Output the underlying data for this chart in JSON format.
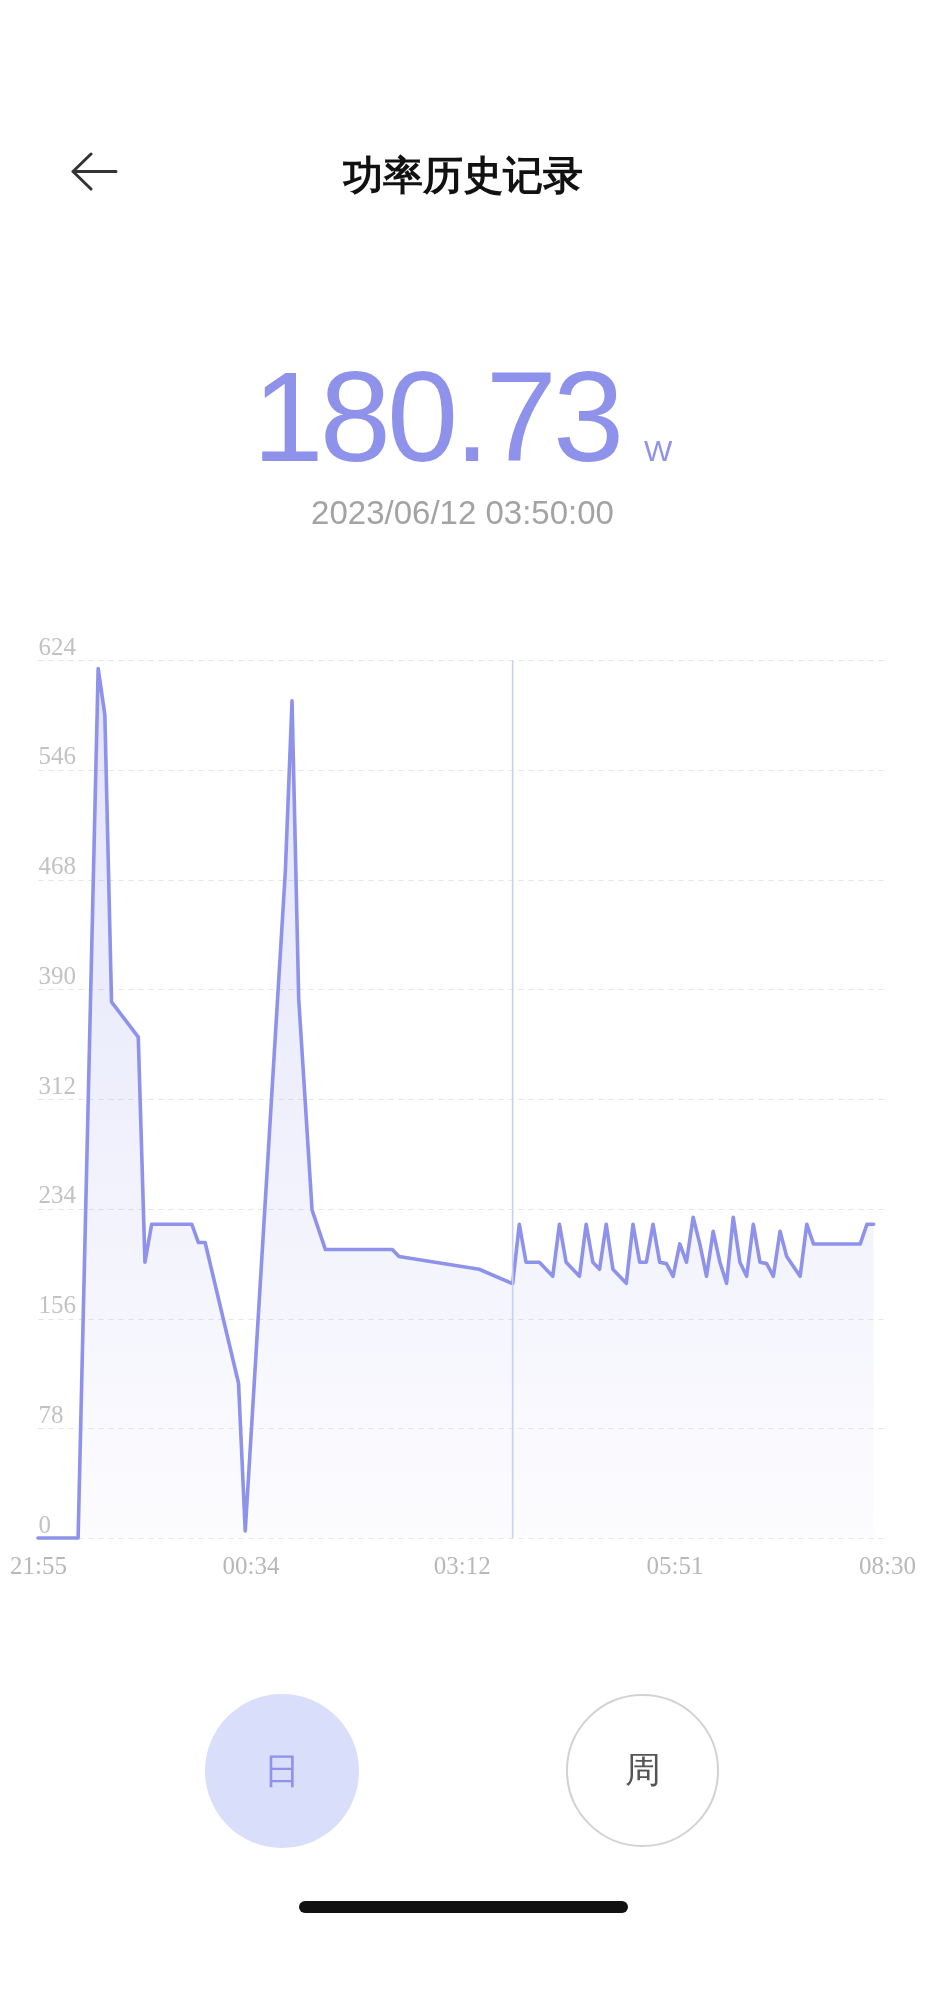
{
  "chart_data": {
    "type": "area",
    "title": "功率历史记录",
    "annotations": [
      "180.73",
      "W",
      "2023/06/12 03:50:00",
      "日",
      "周"
    ],
    "x": [
      "2023-06-11T21:55",
      "2023-06-11T22:25",
      "2023-06-11T22:40",
      "2023-06-11T22:45",
      "2023-06-11T22:50",
      "2023-06-11T23:10",
      "2023-06-11T23:15",
      "2023-06-11T23:20",
      "2023-06-11T23:50",
      "2023-06-11T23:55",
      "2023-06-12T00:00",
      "2023-06-12T00:25",
      "2023-06-12T00:30",
      "2023-06-12T01:00",
      "2023-06-12T01:05",
      "2023-06-12T01:10",
      "2023-06-12T01:20",
      "2023-06-12T01:30",
      "2023-06-12T02:20",
      "2023-06-12T02:25",
      "2023-06-12T03:25",
      "2023-06-12T03:50",
      "2023-06-12T03:55",
      "2023-06-12T04:00",
      "2023-06-12T04:10",
      "2023-06-12T04:20",
      "2023-06-12T04:25",
      "2023-06-12T04:30",
      "2023-06-12T04:40",
      "2023-06-12T04:45",
      "2023-06-12T04:50",
      "2023-06-12T04:55",
      "2023-06-12T05:00",
      "2023-06-12T05:05",
      "2023-06-12T05:15",
      "2023-06-12T05:20",
      "2023-06-12T05:25",
      "2023-06-12T05:30",
      "2023-06-12T05:35",
      "2023-06-12T05:40",
      "2023-06-12T05:45",
      "2023-06-12T05:50",
      "2023-06-12T05:55",
      "2023-06-12T06:00",
      "2023-06-12T06:05",
      "2023-06-12T06:10",
      "2023-06-12T06:15",
      "2023-06-12T06:20",
      "2023-06-12T06:25",
      "2023-06-12T06:30",
      "2023-06-12T06:35",
      "2023-06-12T06:40",
      "2023-06-12T06:45",
      "2023-06-12T06:50",
      "2023-06-12T06:55",
      "2023-06-12T07:00",
      "2023-06-12T07:05",
      "2023-06-12T07:10",
      "2023-06-12T07:15",
      "2023-06-12T07:25",
      "2023-06-12T07:30",
      "2023-06-12T07:35",
      "2023-06-12T08:10",
      "2023-06-12T08:15",
      "2023-06-12T08:20"
    ],
    "series": [
      {
        "color": "#8e92ea",
        "values": [
          0,
          0,
          618,
          585,
          381,
          356,
          196,
          223,
          223,
          210,
          210,
          110,
          5,
          474,
          595,
          383,
          233,
          205,
          205,
          200,
          191,
          180.73,
          223,
          196,
          196,
          186,
          223,
          196,
          186,
          223,
          196,
          191,
          223,
          191,
          181,
          223,
          196,
          196,
          223,
          196,
          195,
          186,
          209,
          196,
          228,
          209,
          186,
          218,
          196,
          181,
          228,
          196,
          186,
          223,
          196,
          195,
          186,
          218,
          200,
          186,
          223,
          209,
          209,
          223,
          223
        ]
      }
    ],
    "xlim": [
      "2023-06-11T21:55",
      "2023-06-12T08:30"
    ],
    "xticks": [
      {
        "value": "2023-06-11T21:55",
        "label": "21:55"
      },
      {
        "value": "2023-06-12T00:34",
        "label": "00:34"
      },
      {
        "value": "2023-06-12T03:12",
        "label": "03:12"
      },
      {
        "value": "2023-06-12T05:51",
        "label": "05:51"
      },
      {
        "value": "2023-06-12T08:30",
        "label": "08:30"
      }
    ],
    "ylim": [
      0,
      624
    ],
    "yticks": [
      0,
      78,
      156,
      234,
      312,
      390,
      468,
      546,
      624
    ],
    "grid": "y",
    "ref_lines": [
      {
        "axis": "x",
        "value": "2023-06-12T03:50",
        "color": "#c8cff2"
      }
    ]
  }
}
